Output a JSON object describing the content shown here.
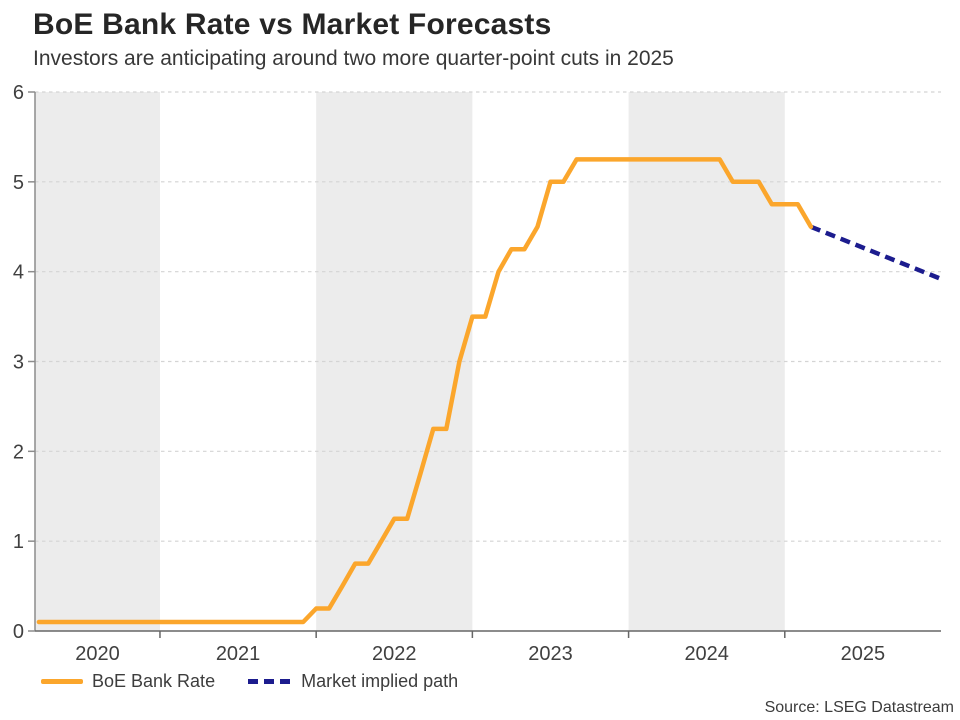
{
  "header": {
    "title": "BoE Bank Rate vs Market Forecasts",
    "subtitle": "Investors are anticipating around two more quarter-point cuts in 2025"
  },
  "legend": {
    "items": [
      {
        "label": "BoE Bank Rate",
        "color": "#FBA62C",
        "style": "solid"
      },
      {
        "label": "Market implied path",
        "color": "#1C1C8E",
        "style": "dashed"
      }
    ]
  },
  "source": {
    "label": "Source: LSEG Datastream"
  },
  "colors": {
    "band": "#ECECEC",
    "grid": "#D4D4D4",
    "bottom_axis": "#666666",
    "left_spine": "#8C8C8C",
    "tick_text": "#404040",
    "boe_line": "#FBA62C",
    "implied_line": "#1C1C8E"
  },
  "chart_data": {
    "type": "line",
    "title": "BoE Bank Rate vs Market Forecasts",
    "subtitle": "Investors are anticipating around two more quarter-point cuts in 2025",
    "x_axis": {
      "unit": "year",
      "range": [
        2020.2,
        2026.0
      ],
      "boundary_ticks": [
        2021,
        2022,
        2023,
        2024,
        2025
      ],
      "year_labels": [
        {
          "year": 2020,
          "label": "2020"
        },
        {
          "year": 2021,
          "label": "2021"
        },
        {
          "year": 2022,
          "label": "2022"
        },
        {
          "year": 2023,
          "label": "2023"
        },
        {
          "year": 2024,
          "label": "2024"
        },
        {
          "year": 2025,
          "label": "2025"
        }
      ]
    },
    "y_axis": {
      "unit": "percent",
      "range": [
        0,
        6
      ],
      "ticks": [
        0,
        1,
        2,
        3,
        4,
        5,
        6
      ]
    },
    "shaded_years": [
      2020,
      2022,
      2024
    ],
    "grid": "horizontal-dotted",
    "legend_position": "bottom-left",
    "series": [
      {
        "name": "BoE Bank Rate",
        "color": "#FBA62C",
        "style": "solid",
        "points": [
          [
            2020.225,
            0.1
          ],
          [
            2021.917,
            0.1
          ],
          [
            2022.0,
            0.25
          ],
          [
            2022.083,
            0.25
          ],
          [
            2022.167,
            0.5
          ],
          [
            2022.25,
            0.75
          ],
          [
            2022.333,
            0.75
          ],
          [
            2022.417,
            1.0
          ],
          [
            2022.5,
            1.25
          ],
          [
            2022.583,
            1.25
          ],
          [
            2022.667,
            1.75
          ],
          [
            2022.75,
            2.25
          ],
          [
            2022.833,
            2.25
          ],
          [
            2022.917,
            3.0
          ],
          [
            2023.0,
            3.5
          ],
          [
            2023.083,
            3.5
          ],
          [
            2023.167,
            4.0
          ],
          [
            2023.25,
            4.25
          ],
          [
            2023.333,
            4.25
          ],
          [
            2023.417,
            4.5
          ],
          [
            2023.5,
            5.0
          ],
          [
            2023.583,
            5.0
          ],
          [
            2023.667,
            5.25
          ],
          [
            2024.583,
            5.25
          ],
          [
            2024.667,
            5.0
          ],
          [
            2024.833,
            5.0
          ],
          [
            2024.917,
            4.75
          ],
          [
            2025.083,
            4.75
          ],
          [
            2025.167,
            4.5
          ]
        ]
      },
      {
        "name": "Market implied path",
        "color": "#1C1C8E",
        "style": "dashed",
        "points": [
          [
            2025.167,
            4.5
          ],
          [
            2026.0,
            3.92
          ]
        ]
      }
    ],
    "source": "Source: LSEG Datastream"
  }
}
